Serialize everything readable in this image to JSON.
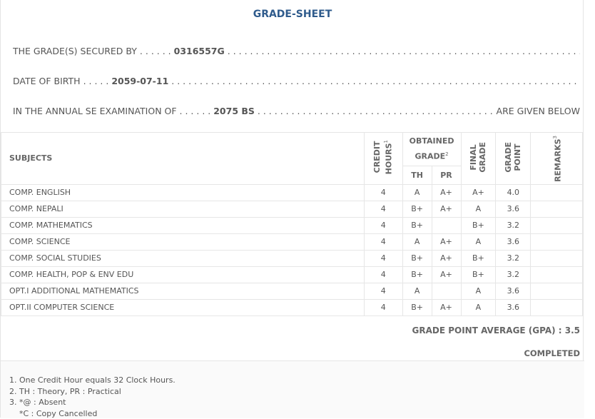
{
  "title": "GRADE-SHEET",
  "secured_by": {
    "label": "THE GRADE(S) SECURED BY",
    "value": "0316557G"
  },
  "dob": {
    "label": "DATE OF BIRTH",
    "value": "2059-07-11"
  },
  "exam": {
    "label": "IN THE ANNUAL SE EXAMINATION OF",
    "value": "2075 BS",
    "suffix": "ARE GIVEN BELOW"
  },
  "headers": {
    "subjects": "SUBJECTS",
    "credit1": "CREDIT",
    "credit2": "HOURS",
    "obtained1": "OBTAINED",
    "obtained2": "GRADE",
    "th": "TH",
    "pr": "PR",
    "final1": "FINAL",
    "final2": "GRADE",
    "gp1": "GRADE",
    "gp2": "POINT",
    "remarks": "REMARKS",
    "sup1": "1",
    "sup2": "2",
    "sup3": "3"
  },
  "rows": [
    [
      "COMP. ENGLISH",
      "4",
      "A",
      "A+",
      "A+",
      "4.0",
      ""
    ],
    [
      "COMP. NEPALI",
      "4",
      "B+",
      "A+",
      "A",
      "3.6",
      ""
    ],
    [
      "COMP. MATHEMATICS",
      "4",
      "B+",
      "",
      "B+",
      "3.2",
      ""
    ],
    [
      "COMP. SCIENCE",
      "4",
      "A",
      "A+",
      "A",
      "3.6",
      ""
    ],
    [
      "COMP. SOCIAL STUDIES",
      "4",
      "B+",
      "A+",
      "B+",
      "3.2",
      ""
    ],
    [
      "COMP. HEALTH, POP & ENV EDU",
      "4",
      "B+",
      "A+",
      "B+",
      "3.2",
      ""
    ],
    [
      "OPT.I ADDITIONAL MATHEMATICS",
      "4",
      "A",
      "",
      "A",
      "3.6",
      ""
    ],
    [
      "OPT.II COMPUTER SCIENCE",
      "4",
      "B+",
      "A+",
      "A",
      "3.6",
      ""
    ]
  ],
  "gpa": "GRADE POINT AVERAGE (GPA) : 3.5",
  "status": "COMPLETED",
  "notes": [
    "1. One Credit Hour equals 32 Clock Hours.",
    "2. TH : Theory, PR : Practical",
    "3. *@ : Absent",
    "    *C : Copy Cancelled"
  ],
  "colors": {
    "title": "#2f5b8c"
  }
}
